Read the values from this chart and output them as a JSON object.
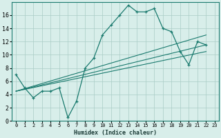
{
  "xlabel": "Humidex (Indice chaleur)",
  "xlim": [
    -0.5,
    23.5
  ],
  "ylim": [
    0,
    18
  ],
  "yticks": [
    0,
    2,
    4,
    6,
    8,
    10,
    12,
    14,
    16
  ],
  "xticks": [
    0,
    1,
    2,
    3,
    4,
    5,
    6,
    7,
    8,
    9,
    10,
    11,
    12,
    13,
    14,
    15,
    16,
    17,
    18,
    19,
    20,
    21,
    22,
    23
  ],
  "background_color": "#d8eeea",
  "line_color": "#1a7a6e",
  "grid_color": "#aaccc6",
  "main_x": [
    0,
    1,
    2,
    3,
    4,
    5,
    6,
    7,
    8,
    9,
    10,
    11,
    12,
    13,
    14,
    15,
    16,
    17,
    18,
    19,
    20,
    21,
    22
  ],
  "main_y": [
    7,
    5,
    3.5,
    4.5,
    4.5,
    5,
    0.5,
    3,
    8,
    9.5,
    13,
    14.5,
    16,
    17.5,
    16.5,
    16.5,
    17,
    14,
    13.5,
    10.5,
    8.5,
    12,
    11.5
  ],
  "line2_x": [
    0,
    22
  ],
  "line2_y": [
    4.5,
    13
  ],
  "line3_x": [
    0,
    22
  ],
  "line3_y": [
    4.5,
    11.5
  ],
  "line4_x": [
    0,
    22
  ],
  "line4_y": [
    4.5,
    10.5
  ]
}
